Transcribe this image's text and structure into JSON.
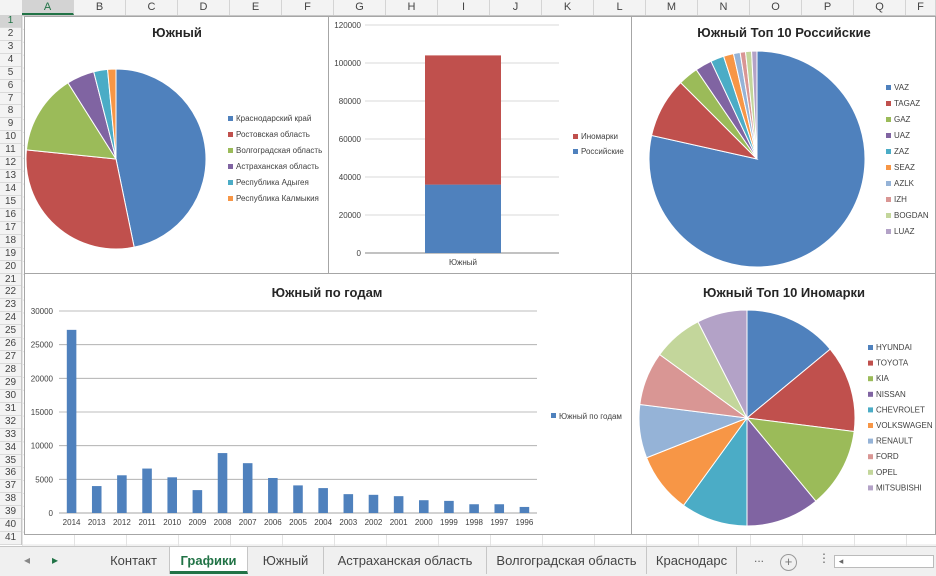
{
  "columns": [
    "A",
    "B",
    "C",
    "D",
    "E",
    "F",
    "G",
    "H",
    "I",
    "J",
    "K",
    "L",
    "M",
    "N",
    "O",
    "P",
    "Q",
    "F"
  ],
  "selected_column": "A",
  "rows": [
    "1",
    "2",
    "3",
    "4",
    "5",
    "6",
    "7",
    "8",
    "9",
    "10",
    "11",
    "12",
    "13",
    "14",
    "15",
    "16",
    "17",
    "18",
    "19",
    "20",
    "21",
    "22",
    "23",
    "24",
    "25",
    "26",
    "27",
    "28",
    "29",
    "30",
    "31",
    "32",
    "33",
    "34",
    "35",
    "36",
    "37",
    "38",
    "39",
    "40",
    "41"
  ],
  "selected_row": "1",
  "tabs": {
    "nav_prev": "◂",
    "nav_next": "▸",
    "items": [
      "Контакт",
      "Графики",
      "Южный",
      "Астраханская область",
      "Волгоградская область",
      "Краснодарс"
    ],
    "active": "Графики",
    "more": "...",
    "add": "+",
    "menu": "⋮",
    "scroll_left": "◂"
  },
  "charts": [
    {
      "id": "pie-south",
      "type": "pie",
      "title": "Южный",
      "labels": [
        "Краснодарский край",
        "Ростовская область",
        "Волгоградская область",
        "Астраханская область",
        "Республика Адыгея",
        "Республика Калмыкия"
      ],
      "values": [
        47,
        30,
        14.5,
        5,
        2.5,
        1.5
      ],
      "colors": [
        "#4f81bd",
        "#c0504d",
        "#9bbb59",
        "#8064a2",
        "#4bacc6",
        "#f79646"
      ]
    },
    {
      "id": "stacked-south",
      "type": "bar",
      "stacked": true,
      "categories": [
        "Южный"
      ],
      "series": [
        {
          "name": "Российские",
          "values": [
            36000
          ],
          "color": "#4f81bd"
        },
        {
          "name": "Иномарки",
          "values": [
            68000
          ],
          "color": "#c0504d"
        }
      ],
      "legend_order": [
        "Иномарки",
        "Российские"
      ],
      "ylim": [
        0,
        120000
      ],
      "yticks": [
        0,
        20000,
        40000,
        60000,
        80000,
        100000,
        120000
      ]
    },
    {
      "id": "pie-rus",
      "type": "pie",
      "title": "Южный Топ 10 Российские",
      "labels": [
        "VAZ",
        "TAGAZ",
        "GAZ",
        "UAZ",
        "ZAZ",
        "SEAZ",
        "AZLK",
        "IZH",
        "BOGDAN",
        "LUAZ"
      ],
      "values": [
        78.5,
        9,
        3,
        2.5,
        2,
        1.5,
        1,
        0.8,
        0.9,
        0.8
      ],
      "colors": [
        "#4f81bd",
        "#c0504d",
        "#9bbb59",
        "#8064a2",
        "#4bacc6",
        "#f79646",
        "#95b3d7",
        "#d99694",
        "#c3d69b",
        "#b3a2c7"
      ]
    },
    {
      "id": "bar-years",
      "type": "bar",
      "title": "Южный по годам",
      "categories": [
        "2014",
        "2013",
        "2012",
        "2011",
        "2010",
        "2009",
        "2008",
        "2007",
        "2006",
        "2005",
        "2004",
        "2003",
        "2002",
        "2001",
        "2000",
        "1999",
        "1998",
        "1997",
        "1996"
      ],
      "series": [
        {
          "name": "Южный по годам",
          "values": [
            27200,
            4000,
            5600,
            6600,
            5300,
            3400,
            8900,
            7400,
            5200,
            4100,
            3700,
            2800,
            2700,
            2500,
            1900,
            1800,
            1300,
            1300,
            900
          ],
          "color": "#4f81bd"
        }
      ],
      "ylim": [
        0,
        30000
      ],
      "yticks": [
        0,
        5000,
        10000,
        15000,
        20000,
        25000,
        30000
      ]
    },
    {
      "id": "pie-foreign",
      "type": "pie",
      "title": "Южный Топ 10 Иномарки",
      "labels": [
        "HYUNDAI",
        "TOYOTA",
        "KIA",
        "NISSAN",
        "CHEVROLET",
        "VOLKSWAGEN",
        "RENAULT",
        "FORD",
        "OPEL",
        "MITSUBISHI"
      ],
      "values": [
        14,
        13,
        12,
        11,
        10,
        9,
        8,
        8,
        7.5,
        7.5
      ],
      "colors": [
        "#4f81bd",
        "#c0504d",
        "#9bbb59",
        "#8064a2",
        "#4bacc6",
        "#f79646",
        "#95b3d7",
        "#d99694",
        "#c3d69b",
        "#b3a2c7"
      ]
    }
  ]
}
